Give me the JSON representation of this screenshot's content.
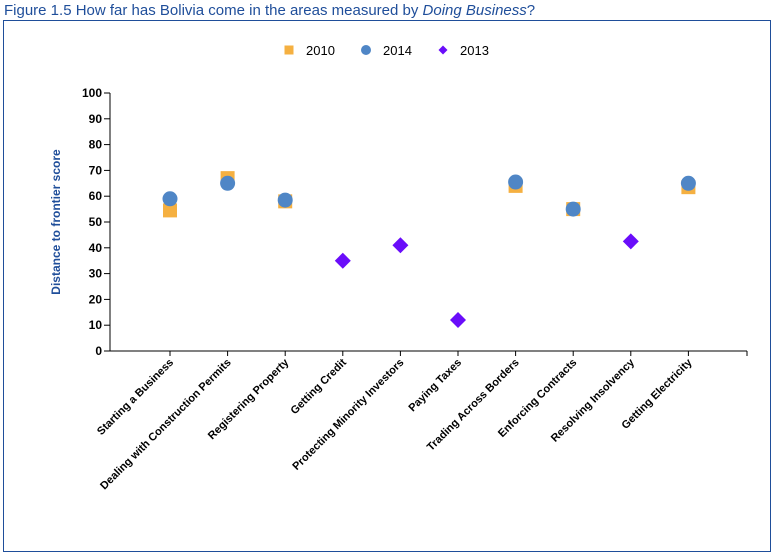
{
  "figure_title": {
    "prefix": "Figure 1.5 How far has Bolivia come in the areas measured by ",
    "italic": "Doing Business",
    "suffix": "?"
  },
  "colors": {
    "series_2010": "#f5b041",
    "series_2014": "#4f86c6",
    "series_2013": "#6a0dfa",
    "axis": "#000000",
    "title": "#1f4e9a"
  },
  "chart_data": {
    "type": "scatter",
    "title": "",
    "ylabel": "Distance to frontier score",
    "xlabel": "",
    "ylim": [
      0,
      100
    ],
    "yticks": [
      0,
      10,
      20,
      30,
      40,
      50,
      60,
      70,
      80,
      90,
      100
    ],
    "grid": false,
    "legend_position": "top",
    "categories": [
      "Starting a Business",
      "Dealing with Construction Permits",
      "Registering Property",
      "Getting Credit",
      "Protecting Minority Investors",
      "Paying Taxes",
      "Trading Across Borders",
      "Enforcing Contracts",
      "Resolving Insolvency",
      "Getting Electricity"
    ],
    "series": [
      {
        "name": "2010",
        "marker": "square",
        "values": [
          54.5,
          67,
          58,
          null,
          null,
          null,
          64,
          55,
          null,
          63.5
        ]
      },
      {
        "name": "2014",
        "marker": "circle",
        "values": [
          59,
          65,
          58.5,
          null,
          null,
          null,
          65.5,
          55,
          null,
          65
        ]
      },
      {
        "name": "2013",
        "marker": "diamond",
        "values": [
          null,
          null,
          null,
          35,
          41,
          12,
          null,
          null,
          42.5,
          null
        ]
      }
    ]
  }
}
